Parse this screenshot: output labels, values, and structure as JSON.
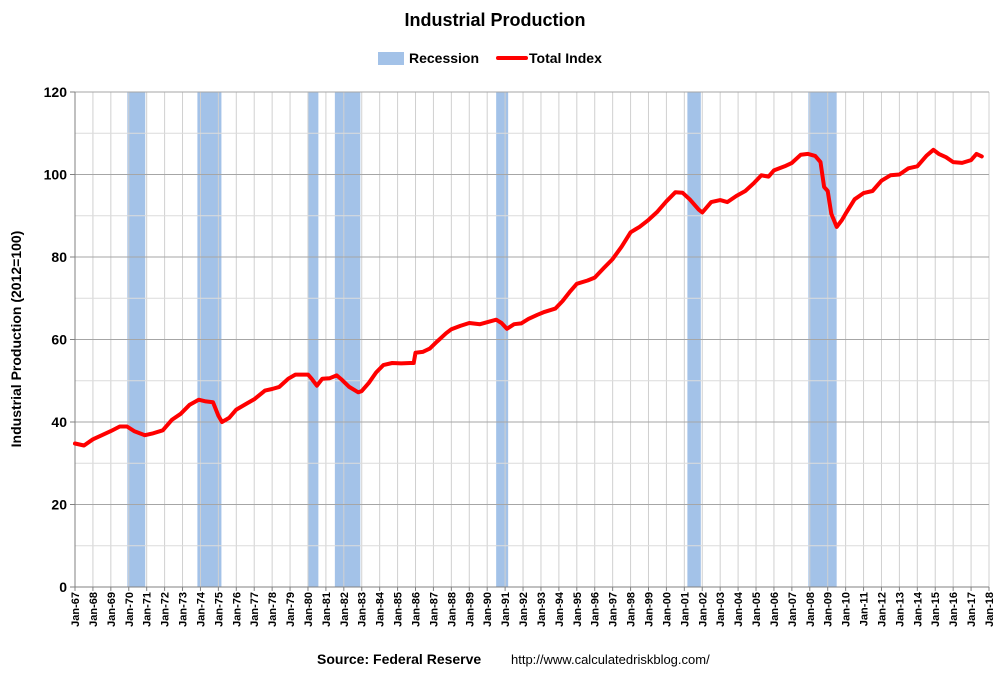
{
  "chart_data": {
    "type": "line",
    "title": "Industrial Production",
    "ylabel": "Industrial Production (2012=100)",
    "xlabel": "",
    "ylim": [
      0,
      120
    ],
    "yticks": [
      0,
      20,
      40,
      60,
      80,
      100,
      120
    ],
    "x_tick_labels": [
      "Jan-67",
      "Jan-68",
      "Jan-69",
      "Jan-70",
      "Jan-71",
      "Jan-72",
      "Jan-73",
      "Jan-74",
      "Jan-75",
      "Jan-76",
      "Jan-77",
      "Jan-78",
      "Jan-79",
      "Jan-80",
      "Jan-81",
      "Jan-82",
      "Jan-83",
      "Jan-84",
      "Jan-85",
      "Jan-86",
      "Jan-87",
      "Jan-88",
      "Jan-89",
      "Jan-90",
      "Jan-91",
      "Jan-92",
      "Jan-93",
      "Jan-94",
      "Jan-95",
      "Jan-96",
      "Jan-97",
      "Jan-98",
      "Jan-99",
      "Jan-00",
      "Jan-01",
      "Jan-02",
      "Jan-03",
      "Jan-04",
      "Jan-05",
      "Jan-06",
      "Jan-07",
      "Jan-08",
      "Jan-09",
      "Jan-10",
      "Jan-11",
      "Jan-12",
      "Jan-13",
      "Jan-14",
      "Jan-15",
      "Jan-16",
      "Jan-17",
      "Jan-18"
    ],
    "grid": true,
    "legend_position": "top-center",
    "legend": [
      {
        "label": "Recession",
        "color": "#a3c2e8",
        "kind": "box"
      },
      {
        "label": "Total Index",
        "color": "#ff0000",
        "kind": "line"
      }
    ],
    "recessions": [
      {
        "start": 1969.92,
        "end": 1970.92
      },
      {
        "start": 1973.83,
        "end": 1975.17
      },
      {
        "start": 1980.0,
        "end": 1980.58
      },
      {
        "start": 1981.5,
        "end": 1982.92
      },
      {
        "start": 1990.5,
        "end": 1991.17
      },
      {
        "start": 2001.17,
        "end": 2001.92
      },
      {
        "start": 2007.92,
        "end": 2009.5
      }
    ],
    "series": [
      {
        "name": "Total Index",
        "color": "#ff0000",
        "points": [
          [
            1967.0,
            34.8
          ],
          [
            1967.5,
            34.3
          ],
          [
            1968.0,
            35.8
          ],
          [
            1968.5,
            36.8
          ],
          [
            1969.0,
            37.8
          ],
          [
            1969.5,
            38.9
          ],
          [
            1969.9,
            38.9
          ],
          [
            1970.3,
            37.8
          ],
          [
            1970.9,
            36.8
          ],
          [
            1971.3,
            37.2
          ],
          [
            1971.9,
            38.0
          ],
          [
            1972.4,
            40.5
          ],
          [
            1972.9,
            42.0
          ],
          [
            1973.4,
            44.2
          ],
          [
            1973.9,
            45.4
          ],
          [
            1974.3,
            45.0
          ],
          [
            1974.7,
            44.8
          ],
          [
            1975.0,
            41.5
          ],
          [
            1975.2,
            40.0
          ],
          [
            1975.6,
            41.0
          ],
          [
            1976.0,
            43.0
          ],
          [
            1976.6,
            44.5
          ],
          [
            1977.0,
            45.5
          ],
          [
            1977.6,
            47.6
          ],
          [
            1978.0,
            48.0
          ],
          [
            1978.4,
            48.5
          ],
          [
            1978.9,
            50.5
          ],
          [
            1979.3,
            51.5
          ],
          [
            1979.8,
            51.5
          ],
          [
            1980.0,
            51.5
          ],
          [
            1980.2,
            50.5
          ],
          [
            1980.5,
            48.8
          ],
          [
            1980.8,
            50.5
          ],
          [
            1981.2,
            50.6
          ],
          [
            1981.6,
            51.3
          ],
          [
            1981.9,
            50.2
          ],
          [
            1982.3,
            48.5
          ],
          [
            1982.8,
            47.2
          ],
          [
            1983.0,
            47.5
          ],
          [
            1983.4,
            49.5
          ],
          [
            1983.8,
            52.0
          ],
          [
            1984.2,
            53.8
          ],
          [
            1984.7,
            54.3
          ],
          [
            1985.2,
            54.2
          ],
          [
            1985.7,
            54.3
          ],
          [
            1985.9,
            54.3
          ],
          [
            1986.0,
            56.8
          ],
          [
            1986.4,
            57.0
          ],
          [
            1986.8,
            57.8
          ],
          [
            1987.2,
            59.5
          ],
          [
            1987.7,
            61.5
          ],
          [
            1988.0,
            62.5
          ],
          [
            1988.5,
            63.3
          ],
          [
            1989.0,
            64.0
          ],
          [
            1989.6,
            63.7
          ],
          [
            1990.0,
            64.2
          ],
          [
            1990.5,
            64.8
          ],
          [
            1990.8,
            64.0
          ],
          [
            1991.1,
            62.6
          ],
          [
            1991.5,
            63.7
          ],
          [
            1991.9,
            63.9
          ],
          [
            1992.3,
            65.0
          ],
          [
            1992.8,
            66.0
          ],
          [
            1993.2,
            66.7
          ],
          [
            1993.8,
            67.5
          ],
          [
            1994.2,
            69.3
          ],
          [
            1994.6,
            71.5
          ],
          [
            1995.0,
            73.5
          ],
          [
            1995.6,
            74.3
          ],
          [
            1996.0,
            75.0
          ],
          [
            1996.5,
            77.3
          ],
          [
            1997.0,
            79.5
          ],
          [
            1997.5,
            82.5
          ],
          [
            1998.0,
            86.0
          ],
          [
            1998.5,
            87.3
          ],
          [
            1999.0,
            89.0
          ],
          [
            1999.5,
            91.0
          ],
          [
            2000.0,
            93.5
          ],
          [
            2000.5,
            95.7
          ],
          [
            2000.9,
            95.6
          ],
          [
            2001.3,
            94.0
          ],
          [
            2001.8,
            91.5
          ],
          [
            2002.0,
            90.8
          ],
          [
            2002.5,
            93.3
          ],
          [
            2003.0,
            93.8
          ],
          [
            2003.4,
            93.3
          ],
          [
            2003.9,
            94.8
          ],
          [
            2004.4,
            96.0
          ],
          [
            2004.9,
            98.0
          ],
          [
            2005.3,
            99.8
          ],
          [
            2005.7,
            99.5
          ],
          [
            2006.0,
            101.0
          ],
          [
            2006.6,
            102.0
          ],
          [
            2007.0,
            102.8
          ],
          [
            2007.5,
            104.8
          ],
          [
            2007.9,
            105.0
          ],
          [
            2008.3,
            104.5
          ],
          [
            2008.6,
            103.0
          ],
          [
            2008.8,
            97.0
          ],
          [
            2009.0,
            96.0
          ],
          [
            2009.2,
            90.5
          ],
          [
            2009.5,
            87.3
          ],
          [
            2009.8,
            89.0
          ],
          [
            2010.0,
            90.5
          ],
          [
            2010.5,
            94.0
          ],
          [
            2011.0,
            95.5
          ],
          [
            2011.5,
            96.0
          ],
          [
            2012.0,
            98.5
          ],
          [
            2012.5,
            99.8
          ],
          [
            2013.0,
            100.0
          ],
          [
            2013.5,
            101.5
          ],
          [
            2014.0,
            102.0
          ],
          [
            2014.5,
            104.5
          ],
          [
            2014.9,
            106.0
          ],
          [
            2015.2,
            105.0
          ],
          [
            2015.6,
            104.2
          ],
          [
            2016.0,
            103.0
          ],
          [
            2016.5,
            102.8
          ],
          [
            2017.0,
            103.5
          ],
          [
            2017.3,
            105.0
          ],
          [
            2017.6,
            104.4
          ]
        ]
      }
    ]
  },
  "footer": {
    "source_label": "Source: Federal Reserve",
    "url": "http://www.calculatedriskblog.com/"
  }
}
